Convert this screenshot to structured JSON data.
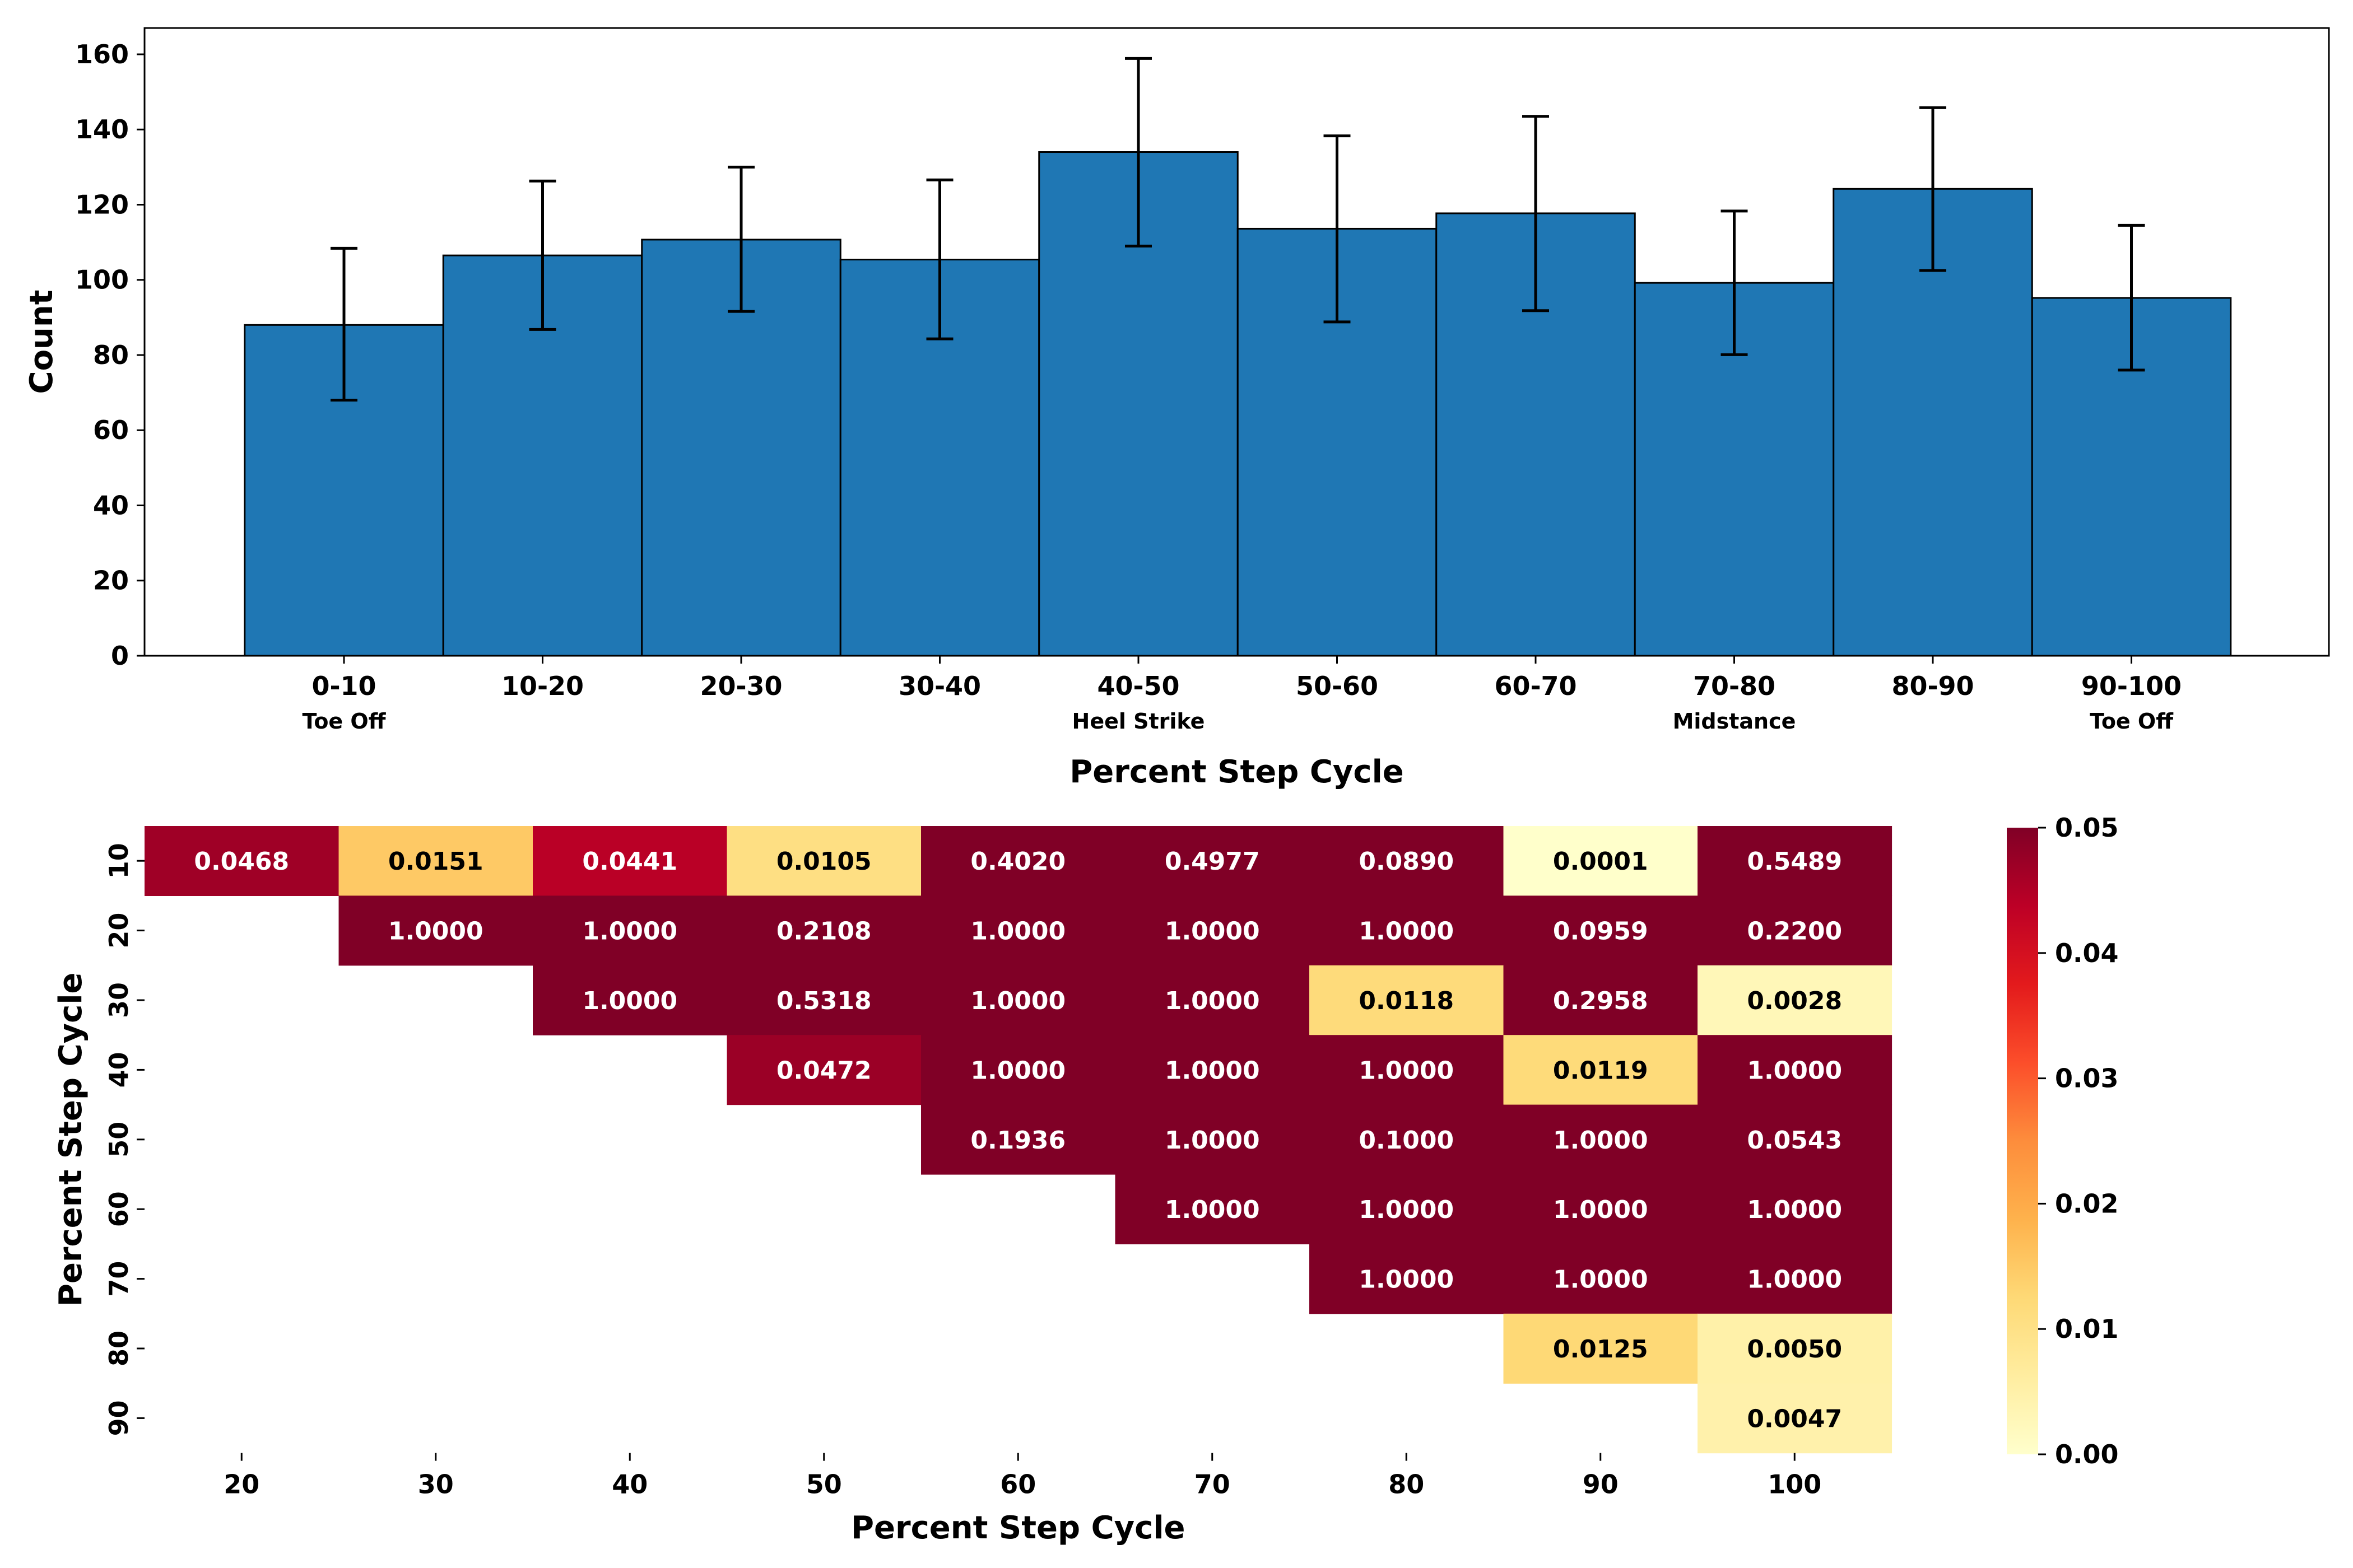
{
  "chart_data": [
    {
      "type": "bar",
      "xlabel": "Percent Step Cycle",
      "ylabel": "Count",
      "ylim": [
        0,
        167
      ],
      "yticks": [
        0,
        20,
        40,
        60,
        80,
        100,
        120,
        140,
        160
      ],
      "categories": [
        "0-10",
        "10-20",
        "20-30",
        "30-40",
        "40-50",
        "50-60",
        "60-70",
        "70-80",
        "80-90",
        "90-100"
      ],
      "phase_labels": [
        "Toe Off",
        "",
        "",
        "",
        "Heel Strike",
        "",
        "",
        "Midstance",
        "",
        "Toe Off"
      ],
      "values": [
        88,
        106.5,
        110.7,
        105.4,
        134,
        113.6,
        117.7,
        99.2,
        124.2,
        95.2
      ],
      "error_low": [
        68,
        86.8,
        91.6,
        84.3,
        109,
        88.8,
        91.8,
        80.1,
        102.5,
        76
      ],
      "error_high": [
        108.4,
        126.3,
        130,
        126.6,
        158.9,
        138.3,
        143.5,
        118.3,
        145.8,
        114.5
      ],
      "bar_color": "#1f77b4",
      "grid": false
    },
    {
      "type": "heatmap",
      "xlabel": "Percent Step Cycle",
      "ylabel": "Percent Step Cycle",
      "x_categories": [
        "20",
        "30",
        "40",
        "50",
        "60",
        "70",
        "80",
        "90",
        "100"
      ],
      "y_categories": [
        "10",
        "20",
        "30",
        "40",
        "50",
        "60",
        "70",
        "80",
        "90"
      ],
      "values": [
        [
          "0.0468",
          "0.0151",
          "0.0441",
          "0.0105",
          "0.4020",
          "0.4977",
          "0.0890",
          "0.0001",
          "0.5489"
        ],
        [
          null,
          "1.0000",
          "1.0000",
          "0.2108",
          "1.0000",
          "1.0000",
          "1.0000",
          "0.0959",
          "0.2200"
        ],
        [
          null,
          null,
          "1.0000",
          "0.5318",
          "1.0000",
          "1.0000",
          "0.0118",
          "0.2958",
          "0.0028"
        ],
        [
          null,
          null,
          null,
          "0.0472",
          "1.0000",
          "1.0000",
          "1.0000",
          "0.0119",
          "1.0000"
        ],
        [
          null,
          null,
          null,
          null,
          "0.1936",
          "1.0000",
          "0.1000",
          "1.0000",
          "0.0543"
        ],
        [
          null,
          null,
          null,
          null,
          null,
          "1.0000",
          "1.0000",
          "1.0000",
          "1.0000"
        ],
        [
          null,
          null,
          null,
          null,
          null,
          null,
          "1.0000",
          "1.0000",
          "1.0000"
        ],
        [
          null,
          null,
          null,
          null,
          null,
          null,
          null,
          "0.0125",
          "0.0050"
        ],
        [
          null,
          null,
          null,
          null,
          null,
          null,
          null,
          null,
          "0.0047"
        ]
      ],
      "colorbar": {
        "min": 0,
        "max": 0.05,
        "ticks": [
          "0.00",
          "0.01",
          "0.02",
          "0.03",
          "0.04",
          "0.05"
        ],
        "colormap": "YlOrRd",
        "colors": [
          "#ffffcc",
          "#ffeda0",
          "#fed976",
          "#feb24c",
          "#fd8d3c",
          "#fc4e2a",
          "#e31a1c",
          "#bd0026",
          "#800026"
        ]
      }
    }
  ]
}
